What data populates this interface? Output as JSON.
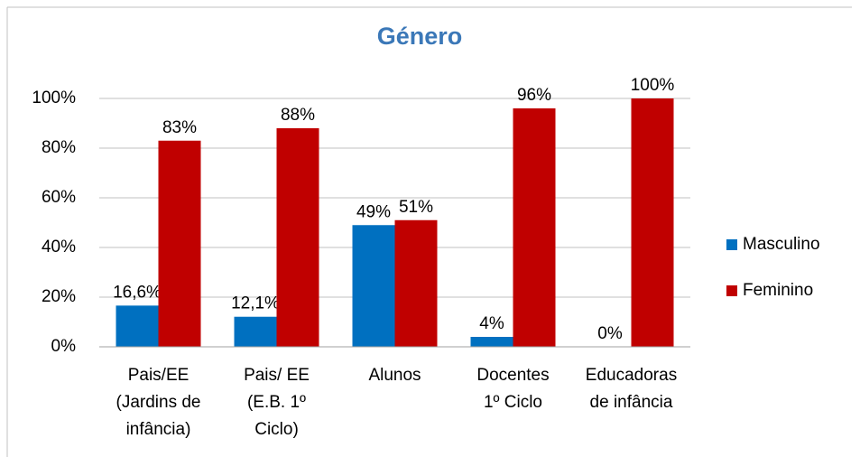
{
  "chart_data": {
    "type": "bar",
    "title": "Género",
    "categories": [
      [
        "Pais/EE",
        "(Jardins de",
        "infância)"
      ],
      [
        "Pais/ EE",
        "(E.B. 1º",
        "Ciclo)"
      ],
      [
        "Alunos"
      ],
      [
        "Docentes",
        "1º Ciclo"
      ],
      [
        "Educadoras",
        "de infância"
      ]
    ],
    "series": [
      {
        "name": "Masculino",
        "color": "#0070c0",
        "values": [
          16.6,
          12.1,
          49,
          4,
          0
        ],
        "value_labels": [
          "16,6%",
          "12,1%",
          "49%",
          "4%",
          "0%"
        ]
      },
      {
        "name": "Feminino",
        "color": "#c00000",
        "values": [
          83,
          88,
          51,
          96,
          100
        ],
        "value_labels": [
          "83%",
          "88%",
          "51%",
          "96%",
          "100%"
        ]
      }
    ],
    "ylim": [
      0,
      100
    ],
    "yticks": [
      {
        "value": 0,
        "label": "0%"
      },
      {
        "value": 20,
        "label": "20%"
      },
      {
        "value": 40,
        "label": "40%"
      },
      {
        "value": 60,
        "label": "60%"
      },
      {
        "value": 80,
        "label": "80%"
      },
      {
        "value": 100,
        "label": "100%"
      }
    ],
    "grid": true,
    "legend": "right"
  }
}
